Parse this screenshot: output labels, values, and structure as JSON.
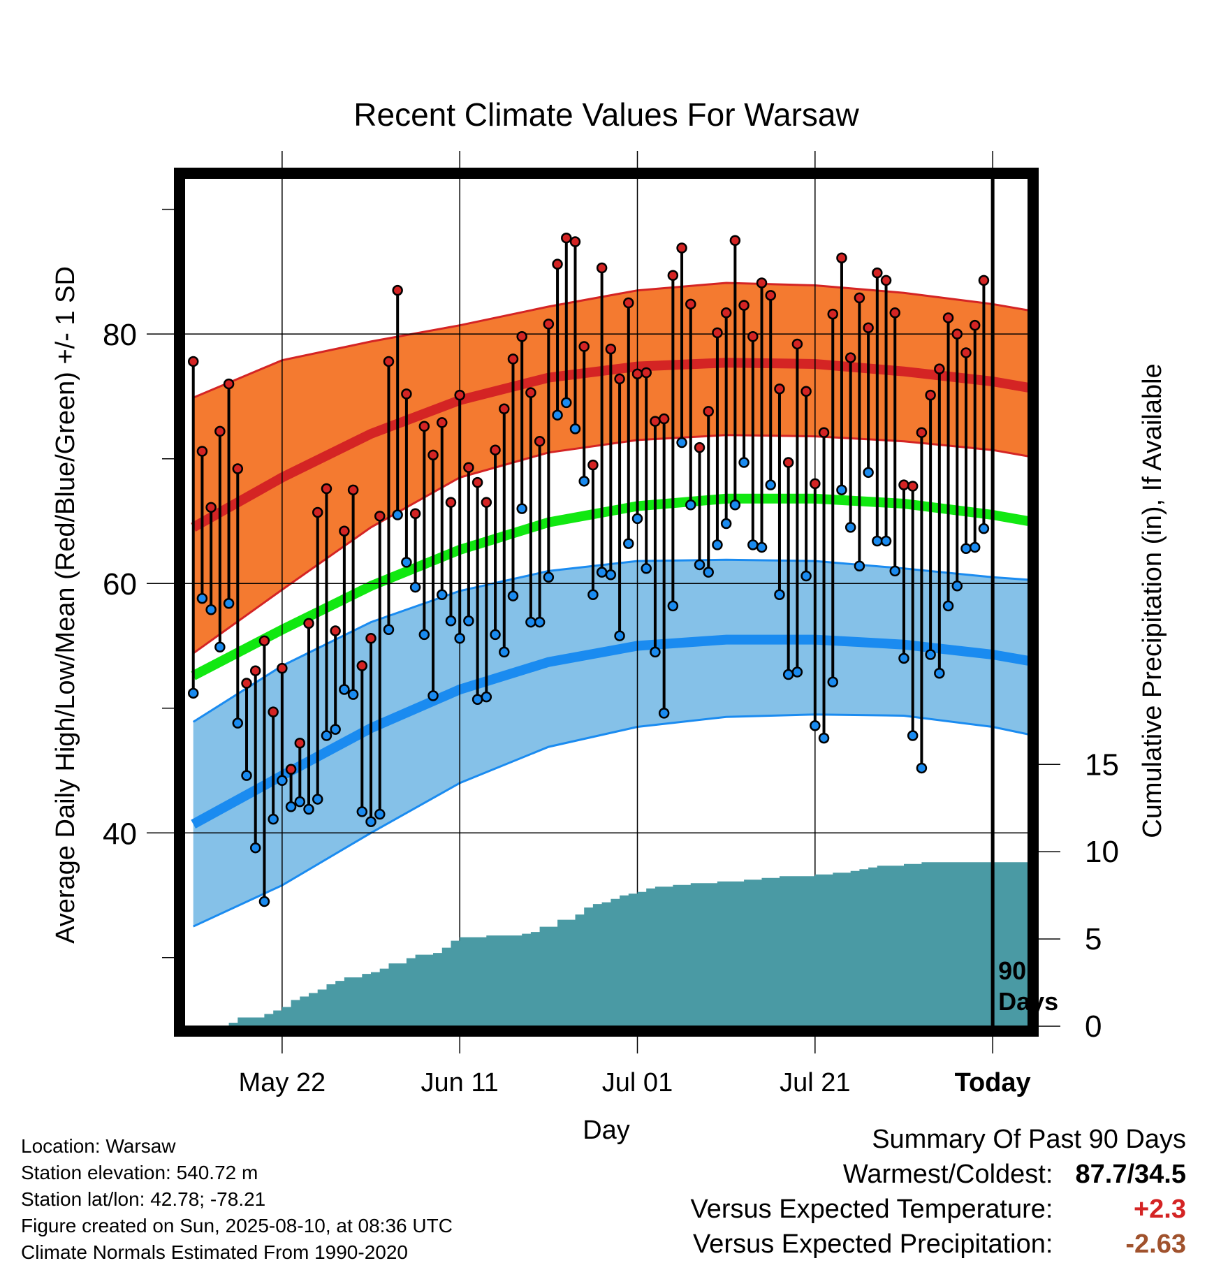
{
  "chart_data": {
    "type": "line",
    "title": "Recent Climate Values For Warsaw",
    "xlabel": "Day",
    "ylabel": "Average Daily High/Low/Mean (Red/Blue/Green) +/- 1 SD",
    "y2label": "Cumulative Precipitation (in), If Available",
    "x_tick_labels": [
      "May 22",
      "Jun 11",
      "Jul 01",
      "Jul 21",
      "Today"
    ],
    "x_tick_days": [
      10,
      30,
      50,
      70,
      90
    ],
    "x_range": [
      -1,
      94
    ],
    "y_ticks": [
      40,
      60,
      80
    ],
    "y_range": [
      24.5,
      92.5
    ],
    "y2_ticks": [
      0,
      5,
      10,
      15
    ],
    "y2_range": [
      0,
      48.6
    ],
    "today_marker": "90\nDays",
    "today_marker_lines": [
      "90",
      "Days"
    ],
    "grid": true,
    "colors": {
      "high_band": "#f47a30",
      "high_line": "#d42424",
      "mean_line": "#11e811",
      "low_band": "#85c1e8",
      "low_line": "#1a8bf0",
      "precip": "#4a9aa4",
      "high_point": "#d42424",
      "low_point": "#1a8bf0"
    },
    "normals_day": [
      0,
      10,
      20,
      30,
      40,
      50,
      60,
      70,
      80,
      90,
      94
    ],
    "normal_high": [
      64.5,
      68.5,
      72.0,
      74.7,
      76.5,
      77.4,
      77.7,
      77.6,
      77.0,
      76.2,
      75.7
    ],
    "normal_high_upper": [
      74.9,
      77.9,
      79.4,
      80.7,
      82.2,
      83.5,
      84.1,
      83.9,
      83.3,
      82.4,
      81.9
    ],
    "normal_high_lower": [
      54.4,
      59.5,
      64.5,
      68.5,
      70.5,
      71.5,
      71.9,
      71.8,
      71.4,
      70.7,
      70.2
    ],
    "normal_mean": [
      52.6,
      56.3,
      59.8,
      62.7,
      64.9,
      66.2,
      66.8,
      66.8,
      66.4,
      65.5,
      65.0
    ],
    "normal_low": [
      40.7,
      44.6,
      48.4,
      51.5,
      53.7,
      55.0,
      55.5,
      55.5,
      55.1,
      54.3,
      53.8
    ],
    "normal_low_upper": [
      48.9,
      53.4,
      56.9,
      59.4,
      61.0,
      61.8,
      61.9,
      61.8,
      61.2,
      60.5,
      60.3
    ],
    "normal_low_lower": [
      32.5,
      35.8,
      40.0,
      44.0,
      46.9,
      48.5,
      49.3,
      49.5,
      49.4,
      48.5,
      47.9
    ],
    "daily_high": [
      77.8,
      70.6,
      66.1,
      72.2,
      76.0,
      69.2,
      52.0,
      53.0,
      55.4,
      49.7,
      53.2,
      45.1,
      47.2,
      56.8,
      65.7,
      67.6,
      56.2,
      64.2,
      67.5,
      53.4,
      55.6,
      65.4,
      77.8,
      83.5,
      75.2,
      65.6,
      72.6,
      70.3,
      72.9,
      66.5,
      75.1,
      69.3,
      68.1,
      66.5,
      70.7,
      74.0,
      78.0,
      79.8,
      75.3,
      71.4,
      80.8,
      85.6,
      87.7,
      87.4,
      79.0,
      69.5,
      85.3,
      78.8,
      76.4,
      82.5,
      76.8,
      76.9,
      73.0,
      73.2,
      84.7,
      86.9,
      82.4,
      70.9,
      73.8,
      80.1,
      81.7,
      87.5,
      82.3,
      79.8,
      84.1,
      83.1,
      75.6,
      69.7,
      79.2,
      75.4,
      68.0,
      72.1,
      81.6,
      86.1,
      78.1,
      82.9,
      80.5,
      84.9,
      84.3,
      81.7,
      67.9,
      67.8,
      72.1,
      75.1,
      77.2,
      81.3,
      80.0,
      78.5,
      80.7,
      84.3
    ],
    "daily_low": [
      51.2,
      58.8,
      57.9,
      54.9,
      58.4,
      48.8,
      44.6,
      38.8,
      34.5,
      41.1,
      44.2,
      42.1,
      42.5,
      41.9,
      42.7,
      47.8,
      48.3,
      51.5,
      51.1,
      41.7,
      40.9,
      41.5,
      56.3,
      65.5,
      61.7,
      59.7,
      55.9,
      51.0,
      59.1,
      57.0,
      55.6,
      57.0,
      50.7,
      50.9,
      55.9,
      54.5,
      59.0,
      66.0,
      56.9,
      56.9,
      60.5,
      73.5,
      74.5,
      72.4,
      68.2,
      59.1,
      60.9,
      60.7,
      55.8,
      63.2,
      65.2,
      61.2,
      54.5,
      49.6,
      58.2,
      71.3,
      66.3,
      61.5,
      60.9,
      63.1,
      64.8,
      66.3,
      69.7,
      63.1,
      62.9,
      67.9,
      59.1,
      52.7,
      52.9,
      60.6,
      48.6,
      47.6,
      52.1,
      67.5,
      64.5,
      61.4,
      68.9,
      63.4,
      63.4,
      61.0,
      54.0,
      47.8,
      45.2,
      54.3,
      52.8,
      58.2,
      59.8,
      62.8,
      62.9,
      64.4
    ],
    "precip_day": [
      -1,
      3,
      4,
      5,
      8,
      9,
      10,
      11,
      12,
      13,
      14,
      15,
      16,
      17,
      19,
      20,
      21,
      22,
      24,
      25,
      26,
      27,
      28,
      29,
      30,
      33,
      36,
      37,
      38,
      39,
      41,
      43,
      44,
      45,
      46,
      47,
      48,
      49,
      50,
      51,
      52,
      54,
      56,
      59,
      62,
      64,
      66,
      70,
      72,
      74,
      75,
      76,
      77,
      80,
      82,
      84,
      86,
      88,
      90,
      94
    ],
    "precip_cum": [
      0,
      0,
      0.2,
      0.5,
      0.7,
      0.9,
      1.1,
      1.5,
      1.7,
      1.9,
      2.1,
      2.4,
      2.6,
      2.8,
      3.0,
      3.1,
      3.3,
      3.6,
      3.9,
      4.1,
      4.1,
      4.2,
      4.5,
      4.9,
      5.1,
      5.2,
      5.2,
      5.3,
      5.4,
      5.7,
      6.1,
      6.4,
      6.8,
      7.0,
      7.1,
      7.3,
      7.5,
      7.6,
      7.7,
      7.9,
      8.0,
      8.1,
      8.2,
      8.3,
      8.4,
      8.5,
      8.6,
      8.7,
      8.8,
      8.9,
      9.0,
      9.1,
      9.2,
      9.3,
      9.4,
      9.4,
      9.4,
      9.4,
      9.4,
      9.4
    ]
  },
  "footer": {
    "location": "Location: Warsaw",
    "elevation": "Station elevation: 540.72 m",
    "latlon": "Station lat/lon: 42.78; -78.21",
    "created": "Figure created on Sun, 2025-08-10, at 08:36 UTC",
    "normals": "Climate Normals Estimated From 1990-2020"
  },
  "summary": {
    "heading": "Summary Of Past 90 Days",
    "warmest_coldest_label": "Warmest/Coldest:",
    "warmest_coldest_value": "87.7/34.5",
    "temp_label": "Versus Expected Temperature:",
    "temp_value": "+2.3",
    "temp_color": "#d42424",
    "precip_label": "Versus Expected Precipitation:",
    "precip_value": "-2.63",
    "precip_color": "#a0522d"
  }
}
